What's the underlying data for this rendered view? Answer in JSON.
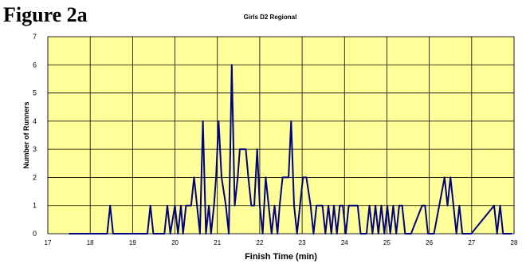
{
  "figure_label": "Figure 2a",
  "chart_data": {
    "type": "line",
    "title": "Girls D2 Regional",
    "xlabel": "Finish Time (min)",
    "ylabel": "Number of Runners",
    "xlim": [
      17,
      28
    ],
    "ylim": [
      0,
      7
    ],
    "x_ticks": [
      "17",
      "18",
      "19",
      "20",
      "21",
      "22",
      "23",
      "24",
      "25",
      "26",
      "27",
      "28"
    ],
    "y_ticks": [
      "0",
      "1",
      "2",
      "3",
      "4",
      "5",
      "6",
      "7"
    ],
    "grid": true,
    "background": "#ffff99",
    "line_color": "#000080",
    "series": [
      {
        "x": [
          17.5,
          18.4,
          18.47,
          18.54,
          19.35,
          19.42,
          19.49,
          19.75,
          19.82,
          19.89,
          20.0,
          20.07,
          20.14,
          20.19,
          20.26,
          20.31,
          20.38,
          20.45,
          20.52,
          20.59,
          20.66,
          20.73,
          20.8,
          20.85,
          20.92,
          20.97,
          21.03,
          21.1,
          21.2,
          21.27,
          21.34,
          21.41,
          21.48,
          21.53,
          21.6,
          21.67,
          21.73,
          21.8,
          21.87,
          21.94,
          22.0,
          22.07,
          22.14,
          22.21,
          22.28,
          22.35,
          22.42,
          22.47,
          22.54,
          22.61,
          22.68,
          22.74,
          22.81,
          22.88,
          22.95,
          23.02,
          23.1,
          23.2,
          23.27,
          23.34,
          23.41,
          23.48,
          23.55,
          23.62,
          23.69,
          23.75,
          23.82,
          23.89,
          23.96,
          24.03,
          24.1,
          24.17,
          24.24,
          24.31,
          24.38,
          24.45,
          24.52,
          24.59,
          24.66,
          24.73,
          24.8,
          24.87,
          24.94,
          25.01,
          25.08,
          25.15,
          25.22,
          25.29,
          25.36,
          25.43,
          25.5,
          25.57,
          25.83,
          25.9,
          25.97,
          26.04,
          26.11,
          26.36,
          26.43,
          26.5,
          26.57,
          26.64,
          26.71,
          26.78,
          26.85,
          26.92,
          26.99,
          27.53,
          27.6,
          27.67,
          27.74,
          27.81,
          27.88,
          27.95
        ],
        "y": [
          0,
          0,
          1,
          0,
          0,
          1,
          0,
          0,
          1,
          0,
          1,
          0,
          1,
          0,
          1,
          1,
          1,
          2,
          1,
          0,
          4,
          0,
          1,
          0,
          1,
          2,
          4,
          2,
          1,
          0,
          6,
          1,
          2,
          3,
          3,
          3,
          2,
          1,
          1,
          3,
          1,
          0,
          2,
          1,
          0,
          1,
          0,
          1,
          2,
          2,
          2,
          4,
          1,
          0,
          1,
          2,
          2,
          1,
          0,
          1,
          1,
          1,
          0,
          1,
          0,
          1,
          0,
          1,
          1,
          0,
          1,
          1,
          1,
          1,
          0,
          0,
          0,
          1,
          0,
          1,
          0,
          1,
          0,
          1,
          0,
          1,
          0,
          1,
          1,
          0,
          0,
          0,
          1,
          1,
          0,
          0,
          0,
          2,
          1,
          2,
          1,
          0,
          1,
          0,
          0,
          0,
          0,
          1,
          0,
          1,
          0,
          0,
          0,
          0
        ]
      }
    ]
  }
}
